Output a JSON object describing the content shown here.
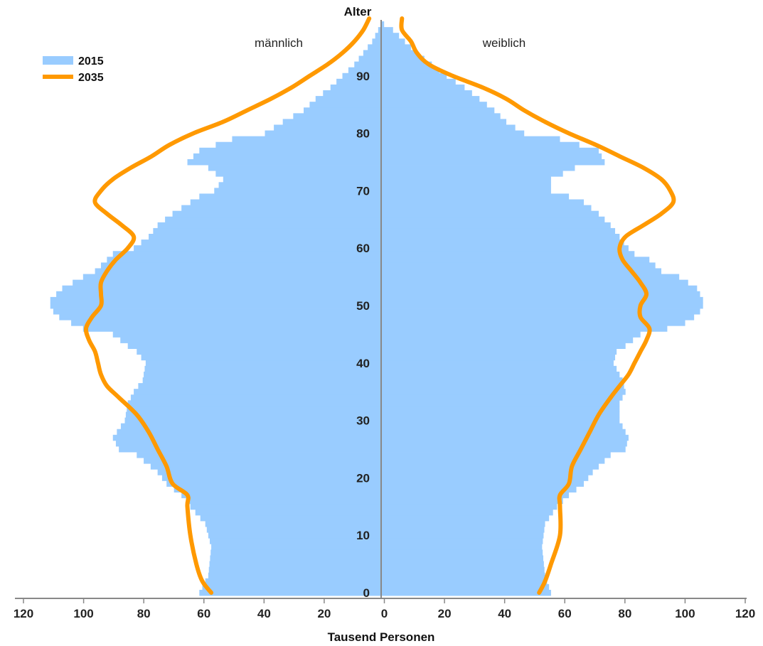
{
  "chart_data": {
    "type": "bar",
    "subtype": "population-pyramid",
    "xlabel": "Tausend Personen",
    "ylabel": "Alter",
    "left_label": "männlich",
    "right_label": "weiblich",
    "xlim": [
      0,
      120
    ],
    "ylim": [
      0,
      99
    ],
    "x_ticks": [
      "120",
      "100",
      "80",
      "60",
      "40",
      "20",
      "0",
      "20",
      "40",
      "60",
      "80",
      "100",
      "120"
    ],
    "y_ticks": [
      "0",
      "10",
      "20",
      "30",
      "40",
      "50",
      "60",
      "70",
      "80",
      "90"
    ],
    "grid": false,
    "legend_position": "top-left",
    "legend": [
      {
        "name": "2015",
        "style": "bar",
        "color": "#99ccff"
      },
      {
        "name": "2035",
        "style": "line",
        "color": "#ff9900"
      }
    ],
    "series": [
      {
        "name": "2015",
        "side": "male",
        "age_points": [
          [
            0,
            61
          ],
          [
            3,
            58
          ],
          [
            8,
            57
          ],
          [
            12,
            59
          ],
          [
            15,
            64
          ],
          [
            17,
            67
          ],
          [
            19,
            72
          ],
          [
            21,
            75
          ],
          [
            24,
            82
          ],
          [
            25,
            88
          ],
          [
            27,
            90
          ],
          [
            30,
            86
          ],
          [
            33,
            85
          ],
          [
            35,
            83
          ],
          [
            37,
            80
          ],
          [
            40,
            79
          ],
          [
            42,
            82
          ],
          [
            43,
            85
          ],
          [
            45,
            90
          ],
          [
            46,
            100
          ],
          [
            47,
            104
          ],
          [
            48,
            108
          ],
          [
            49,
            110
          ],
          [
            50,
            111
          ],
          [
            51,
            111
          ],
          [
            53,
            107
          ],
          [
            55,
            100
          ],
          [
            56,
            96
          ],
          [
            58,
            92
          ],
          [
            59,
            90
          ],
          [
            60,
            83
          ],
          [
            62,
            78
          ],
          [
            64,
            75
          ],
          [
            66,
            70
          ],
          [
            68,
            64
          ],
          [
            69,
            61
          ],
          [
            70,
            56
          ],
          [
            72,
            53
          ],
          [
            74,
            58
          ],
          [
            75,
            65
          ],
          [
            77,
            61
          ],
          [
            79,
            50
          ],
          [
            80,
            39
          ],
          [
            82,
            33
          ],
          [
            84,
            26
          ],
          [
            86,
            22
          ],
          [
            88,
            17
          ],
          [
            90,
            13
          ],
          [
            92,
            9
          ],
          [
            94,
            6
          ],
          [
            96,
            3
          ],
          [
            98,
            1
          ],
          [
            99,
            0
          ]
        ]
      },
      {
        "name": "2015",
        "side": "female",
        "age_points": [
          [
            0,
            57
          ],
          [
            3,
            55
          ],
          [
            8,
            54
          ],
          [
            12,
            55
          ],
          [
            15,
            59
          ],
          [
            17,
            63
          ],
          [
            19,
            68
          ],
          [
            21,
            71
          ],
          [
            24,
            77
          ],
          [
            25,
            82
          ],
          [
            27,
            83
          ],
          [
            30,
            80
          ],
          [
            33,
            80
          ],
          [
            35,
            82
          ],
          [
            37,
            81
          ],
          [
            40,
            78
          ],
          [
            42,
            79
          ],
          [
            43,
            82
          ],
          [
            45,
            87
          ],
          [
            46,
            96
          ],
          [
            47,
            102
          ],
          [
            48,
            105
          ],
          [
            49,
            107
          ],
          [
            50,
            108
          ],
          [
            51,
            108
          ],
          [
            53,
            106
          ],
          [
            55,
            100
          ],
          [
            56,
            94
          ],
          [
            58,
            90
          ],
          [
            59,
            85
          ],
          [
            60,
            83
          ],
          [
            62,
            80
          ],
          [
            64,
            77
          ],
          [
            66,
            73
          ],
          [
            68,
            68
          ],
          [
            69,
            63
          ],
          [
            70,
            57
          ],
          [
            72,
            57
          ],
          [
            74,
            65
          ],
          [
            75,
            75
          ],
          [
            77,
            73
          ],
          [
            79,
            60
          ],
          [
            80,
            48
          ],
          [
            82,
            42
          ],
          [
            84,
            38
          ],
          [
            86,
            33
          ],
          [
            88,
            28
          ],
          [
            90,
            22
          ],
          [
            92,
            17
          ],
          [
            94,
            12
          ],
          [
            96,
            8
          ],
          [
            98,
            4
          ],
          [
            99,
            1
          ]
        ]
      },
      {
        "name": "2035",
        "side": "male",
        "age_points": [
          [
            0,
            57
          ],
          [
            2,
            60
          ],
          [
            5,
            62
          ],
          [
            10,
            64
          ],
          [
            15,
            65
          ],
          [
            17,
            65
          ],
          [
            19,
            70
          ],
          [
            22,
            72
          ],
          [
            25,
            75
          ],
          [
            28,
            78
          ],
          [
            31,
            82
          ],
          [
            34,
            88
          ],
          [
            36,
            92
          ],
          [
            38,
            94
          ],
          [
            40,
            95
          ],
          [
            42,
            96
          ],
          [
            44,
            98
          ],
          [
            46,
            99
          ],
          [
            48,
            97
          ],
          [
            50,
            94
          ],
          [
            52,
            94
          ],
          [
            54,
            94
          ],
          [
            56,
            92
          ],
          [
            58,
            89
          ],
          [
            60,
            85
          ],
          [
            62,
            83
          ],
          [
            64,
            87
          ],
          [
            66,
            92
          ],
          [
            68,
            96
          ],
          [
            70,
            94
          ],
          [
            72,
            90
          ],
          [
            74,
            84
          ],
          [
            76,
            77
          ],
          [
            78,
            71
          ],
          [
            80,
            63
          ],
          [
            82,
            53
          ],
          [
            84,
            45
          ],
          [
            86,
            37
          ],
          [
            88,
            30
          ],
          [
            90,
            24
          ],
          [
            92,
            18
          ],
          [
            94,
            13
          ],
          [
            96,
            9
          ],
          [
            98,
            6
          ],
          [
            100,
            4
          ]
        ]
      },
      {
        "name": "2035",
        "side": "female",
        "age_points": [
          [
            0,
            53
          ],
          [
            2,
            55
          ],
          [
            5,
            57
          ],
          [
            10,
            60
          ],
          [
            15,
            60
          ],
          [
            17,
            60
          ],
          [
            19,
            63
          ],
          [
            22,
            64
          ],
          [
            25,
            67
          ],
          [
            28,
            70
          ],
          [
            31,
            73
          ],
          [
            34,
            77
          ],
          [
            36,
            80
          ],
          [
            38,
            83
          ],
          [
            40,
            85
          ],
          [
            42,
            87
          ],
          [
            44,
            89
          ],
          [
            46,
            90
          ],
          [
            48,
            87
          ],
          [
            50,
            87
          ],
          [
            52,
            89
          ],
          [
            54,
            87
          ],
          [
            56,
            84
          ],
          [
            58,
            81
          ],
          [
            60,
            80
          ],
          [
            62,
            82
          ],
          [
            64,
            88
          ],
          [
            66,
            94
          ],
          [
            68,
            98
          ],
          [
            70,
            97
          ],
          [
            72,
            94
          ],
          [
            74,
            88
          ],
          [
            76,
            80
          ],
          [
            78,
            72
          ],
          [
            80,
            63
          ],
          [
            82,
            55
          ],
          [
            84,
            48
          ],
          [
            86,
            42
          ],
          [
            88,
            34
          ],
          [
            90,
            24
          ],
          [
            92,
            16
          ],
          [
            94,
            12
          ],
          [
            96,
            10
          ],
          [
            98,
            7
          ],
          [
            100,
            7
          ]
        ]
      }
    ]
  },
  "colors": {
    "bar_2015": "#99ccff",
    "line_2035": "#ff9900",
    "axis": "#888888"
  }
}
